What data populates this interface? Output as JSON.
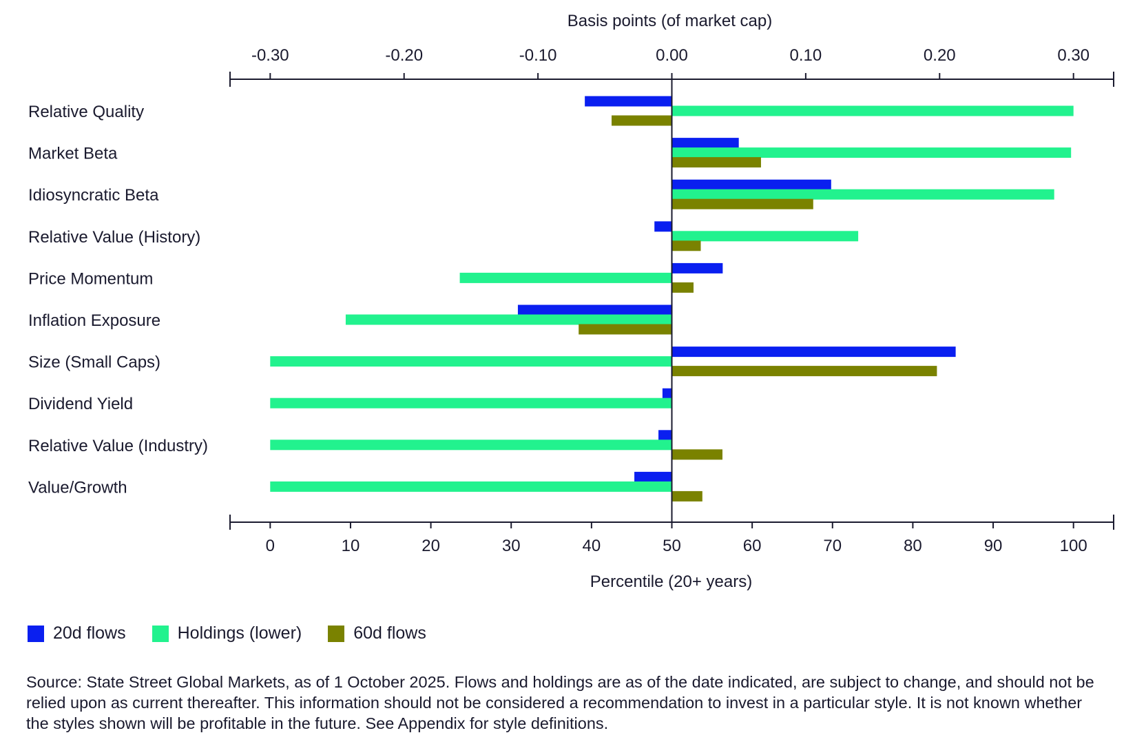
{
  "chart_data": {
    "type": "bar",
    "orientation": "horizontal",
    "top_axis": {
      "label": "Basis points (of market cap)",
      "range": [
        -0.33,
        0.33
      ],
      "ticks": [
        -0.3,
        -0.2,
        -0.1,
        0.0,
        0.1,
        0.2,
        0.3
      ],
      "tick_labels": [
        "-0.30",
        "-0.20",
        "-0.10",
        "0.00",
        "0.10",
        "0.20",
        "0.30"
      ]
    },
    "bottom_axis": {
      "label": "Percentile (20+ years)",
      "range": [
        -5,
        105
      ],
      "ticks": [
        0,
        10,
        20,
        30,
        40,
        50,
        60,
        70,
        80,
        90,
        100
      ],
      "tick_labels": [
        "0",
        "10",
        "20",
        "30",
        "40",
        "50",
        "60",
        "70",
        "80",
        "90",
        "100"
      ]
    },
    "categories": [
      "Relative Quality",
      "Market Beta",
      "Idiosyncratic Beta",
      "Relative Value (History)",
      "Price Momentum",
      "Inflation Exposure",
      "Size (Small Caps)",
      "Dividend Yield",
      "Relative Value (Industry)",
      "Value/Growth"
    ],
    "series": [
      {
        "name": "20d flows",
        "axis": "top",
        "color": "#0a1ff0",
        "values": [
          -0.065,
          0.05,
          0.119,
          -0.013,
          0.038,
          -0.115,
          0.212,
          -0.007,
          -0.01,
          -0.028
        ]
      },
      {
        "name": "Holdings (lower)",
        "axis": "bottom",
        "color": "#22f28e",
        "values": [
          100,
          99.7,
          97.6,
          73.2,
          23.6,
          9.4,
          0,
          0,
          0,
          0
        ]
      },
      {
        "name": "60d flows",
        "axis": "bottom",
        "color": "#7a8200",
        "values": [
          42.5,
          61.1,
          67.6,
          53.6,
          52.7,
          38.4,
          83.0,
          50,
          56.3,
          53.8
        ]
      }
    ]
  },
  "legend": {
    "items": [
      {
        "label": "20d flows",
        "color": "#0a1ff0"
      },
      {
        "label": "Holdings (lower)",
        "color": "#22f28e"
      },
      {
        "label": "60d flows",
        "color": "#7a8200"
      }
    ]
  },
  "source_note": "Source: State Street Global Markets, as of 1 October 2025. Flows and holdings are as of the date indicated, are subject to change, and should not be relied upon as current thereafter. This information should not be considered a recommendation to invest in a particular style. It is not known whether the styles shown will be profitable in the future. See Appendix for style definitions."
}
